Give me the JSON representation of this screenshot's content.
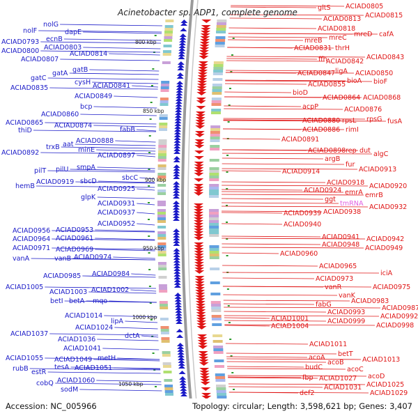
{
  "title": "Acinetobacter sp. ADP1, complete genome",
  "accession_text": "Accession: NC_005966",
  "topology_text": "Topology: circular; Length: 3,598,621 bp; Genes: 3,407",
  "kbp_marks": [
    "800 kbp",
    "850 kbp",
    "900 kbp",
    "950 kbp",
    "1000 kbp",
    "1050 kbp"
  ],
  "left_labels": [
    "nolG",
    "nolF",
    "dapE",
    "ACIAD0793",
    "ecnB",
    "ACIAD0800",
    "ACIAD0803",
    "ACIAD0807",
    "ACIAD0814",
    "gatB",
    "gatC",
    "gatA",
    "cysH",
    "ACIAD0835",
    "ACIAD0841",
    "ACIAD0849",
    "bcp",
    "ACIAD0860",
    "ACIAD0865",
    "ACIAD0874",
    "thiD",
    "fabB",
    "ACIAD0888",
    "trxB",
    "aat",
    "ACIAD0892",
    "minE",
    "ACIAD0897",
    "smpA",
    "pilT",
    "pilU",
    "sbcC",
    "sbcD",
    "ACIAD0919",
    "hemB",
    "ACIAD0925",
    "glpK",
    "ACIAD0931",
    "ACIAD0937",
    "ACIAD0952",
    "ACIAD0956",
    "ACIAD0953",
    "ACIAD0964",
    "ACIAD0961",
    "ACIAD0971",
    "ACIAD0969",
    "vanA",
    "vanB",
    "ACIAD0974",
    "ACIAD0985",
    "ACIAD0984",
    "ACIAD1005",
    "ACIAD1002",
    "ACIAD1003",
    "betI",
    "betA",
    "mqo",
    "ACIAD1014",
    "lipA",
    "ACIAD1024",
    "ACIAD1037",
    "dctA",
    "ACIAD1036",
    "ACIAD1041",
    "ACIAD1055",
    "ACIAD1049",
    "metH",
    "rubB",
    "tesA",
    "ACIAD1051",
    "estR",
    "ACIAD1060",
    "cobQ",
    "sodM"
  ],
  "right_labels": [
    "gltS",
    "ACIAD0805",
    "ACIAD0813",
    "ACIAD0815",
    "ACIAD0818",
    "mreB",
    "mreC",
    "mreD",
    "cafA",
    "ACIAD0831",
    "thrH",
    "ffh",
    "ACIAD0842",
    "ACIAD0843",
    "ACIAD0847",
    "ligA",
    "ACIAD0850",
    "ACIAD0855",
    "bioA",
    "bioF",
    "bioD",
    "ACIAD0864",
    "ACIAD0868",
    "acpP",
    "ACIAD0876",
    "ACIAD0880",
    "rpsL",
    "rpsG",
    "fusA",
    "ACIAD0886",
    "rimI",
    "ACIAD0891",
    "ACIAD0898",
    "rep",
    "dut",
    "algC",
    "argB",
    "fur",
    "ACIAD0914",
    "ACIAD0913",
    "ACIAD0918",
    "ACIAD0920",
    "ACIAD0924",
    "emrA",
    "ggt",
    "emrB",
    "tmRNA",
    "ACIAD0932",
    "ACIAD0939",
    "ACIAD0938",
    "ACIAD0940",
    "ACIAD0941",
    "ACIAD0942",
    "ACIAD0948",
    "ACIAD0949",
    "ACIAD0960",
    "ACIAD0965",
    "iciA",
    "ACIAD0973",
    "vanR",
    "ACIAD0975",
    "vanK",
    "ACIAD0983",
    "fabG",
    "ACIAD0987",
    "ACIAD0993",
    "ACIAD0992",
    "ACIAD1001",
    "ACIAD0999",
    "ACIAD0998",
    "ACIAD1004",
    "ACIAD1011",
    "betT",
    "acoA",
    "ACIAD1013",
    "acoB",
    "budC",
    "acoC",
    "fbp",
    "ACIAD1027",
    "acoD",
    "ACIAD1031",
    "ACIAD1025",
    "def2",
    "ACIAD1029"
  ],
  "colors": {
    "forward": "#e01515",
    "reverse": "#1a1ac8",
    "rna": "#e060e0",
    "backbone": "#8a8a8a"
  }
}
